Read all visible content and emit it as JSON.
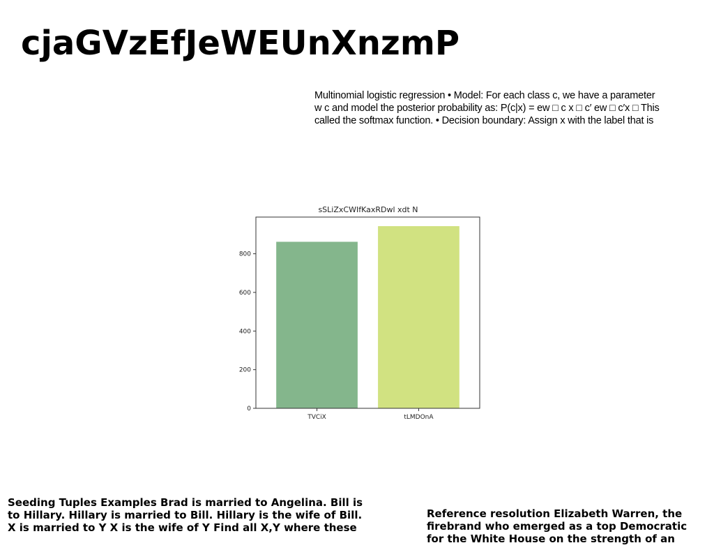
{
  "page": {
    "title": "cjaGVzEfJeWEUnXnzmP"
  },
  "abstract": {
    "lines": [
      "Multinomial logistic regression • Model: For each class c, we have a parameter",
      "w c and model the posterior probability as: P(c|x) = ew □ c x □ c′ ew □ c′x □ This",
      "called the softmax function. • Decision boundary: Assign x with the label that is"
    ]
  },
  "chart_data": {
    "type": "bar",
    "title": "sSLiZxCWIfKaxRDwl xdt N",
    "categories": [
      "TVCiX",
      "tLMDOnA"
    ],
    "values": [
      862,
      943
    ],
    "colors": [
      "#84b68c",
      "#d1e281"
    ],
    "xlabel": "",
    "ylabel": "",
    "ylim": [
      0,
      990
    ],
    "yticks": [
      0,
      200,
      400,
      600,
      800
    ],
    "grid": false
  },
  "footer_left": {
    "lines": [
      "Seeding Tuples Examples Brad is married to Angelina. Bill is",
      "to Hillary. Hillary is married to Bill. Hillary is the wife of Bill.",
      "X is married to Y X is the wife of Y Find all X,Y where these"
    ]
  },
  "footer_right": {
    "lines": [
      "Reference resolution Elizabeth Warren, the",
      "firebrand who emerged as a top Democratic",
      "for the White House on the strength of an"
    ]
  }
}
